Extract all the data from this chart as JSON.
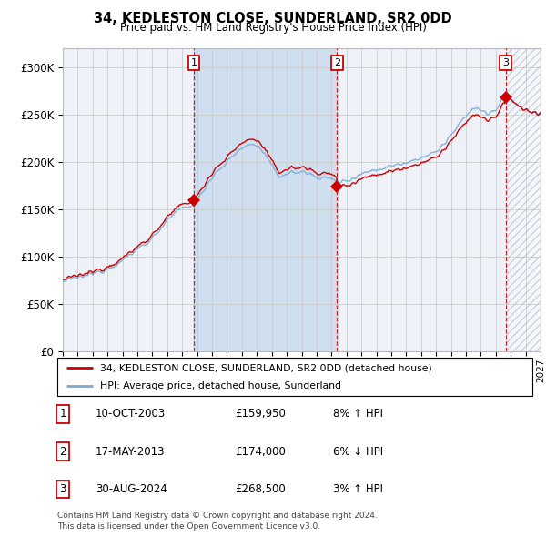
{
  "title": "34, KEDLESTON CLOSE, SUNDERLAND, SR2 0DD",
  "subtitle": "Price paid vs. HM Land Registry's House Price Index (HPI)",
  "xlim_start": 1995.0,
  "xlim_end": 2027.0,
  "ylim": [
    0,
    320000
  ],
  "yticks": [
    0,
    50000,
    100000,
    150000,
    200000,
    250000,
    300000
  ],
  "ytick_labels": [
    "£0",
    "£50K",
    "£100K",
    "£150K",
    "£200K",
    "£250K",
    "£300K"
  ],
  "sale_dates": [
    2003.78,
    2013.37,
    2024.66
  ],
  "sale_prices": [
    159950,
    174000,
    268500
  ],
  "sale_labels": [
    "1",
    "2",
    "3"
  ],
  "legend_house": "34, KEDLESTON CLOSE, SUNDERLAND, SR2 0DD (detached house)",
  "legend_hpi": "HPI: Average price, detached house, Sunderland",
  "table_rows": [
    {
      "num": "1",
      "date": "10-OCT-2003",
      "price": "£159,950",
      "hpi": "8% ↑ HPI"
    },
    {
      "num": "2",
      "date": "17-MAY-2013",
      "price": "£174,000",
      "hpi": "6% ↓ HPI"
    },
    {
      "num": "3",
      "date": "30-AUG-2024",
      "price": "£268,500",
      "hpi": "3% ↑ HPI"
    }
  ],
  "footer": "Contains HM Land Registry data © Crown copyright and database right 2024.\nThis data is licensed under the Open Government Licence v3.0.",
  "hpi_color": "#7aaad4",
  "sale_line_color": "#cc0000",
  "sale_marker_color": "#cc0000",
  "background_color": "#ffffff",
  "plot_bg_color": "#eef2f8",
  "grid_color": "#cccccc",
  "shade_color": "#d0dff0"
}
